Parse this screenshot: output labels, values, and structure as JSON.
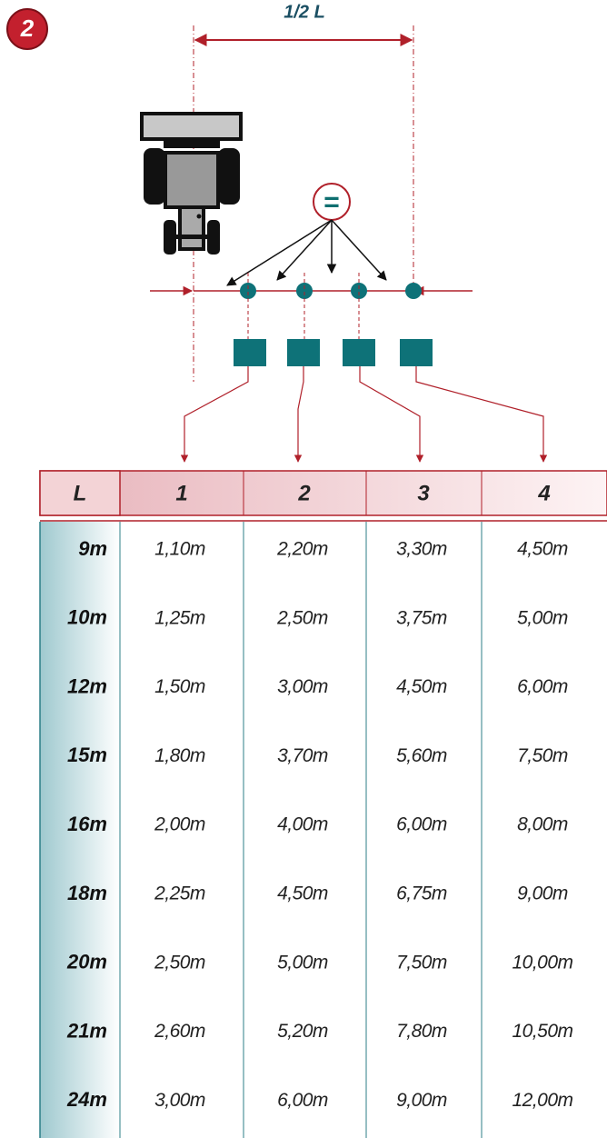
{
  "badge": "2",
  "dimension_label": "1/2 L",
  "equalizer": "=",
  "table": {
    "header": [
      "L",
      "1",
      "2",
      "3",
      "4"
    ],
    "rows": [
      [
        "9m",
        "1,10m",
        "2,20m",
        "3,30m",
        "4,50m"
      ],
      [
        "10m",
        "1,25m",
        "2,50m",
        "3,75m",
        "5,00m"
      ],
      [
        "12m",
        "1,50m",
        "3,00m",
        "4,50m",
        "6,00m"
      ],
      [
        "15m",
        "1,80m",
        "3,70m",
        "5,60m",
        "7,50m"
      ],
      [
        "16m",
        "2,00m",
        "4,00m",
        "6,00m",
        "8,00m"
      ],
      [
        "18m",
        "2,25m",
        "4,50m",
        "6,75m",
        "9,00m"
      ],
      [
        "20m",
        "2,50m",
        "5,00m",
        "7,50m",
        "10,00m"
      ],
      [
        "21m",
        "2,60m",
        "5,20m",
        "7,80m",
        "10,50m"
      ],
      [
        "24m",
        "3,00m",
        "6,00m",
        "9,00m",
        "12,00m"
      ]
    ]
  }
}
